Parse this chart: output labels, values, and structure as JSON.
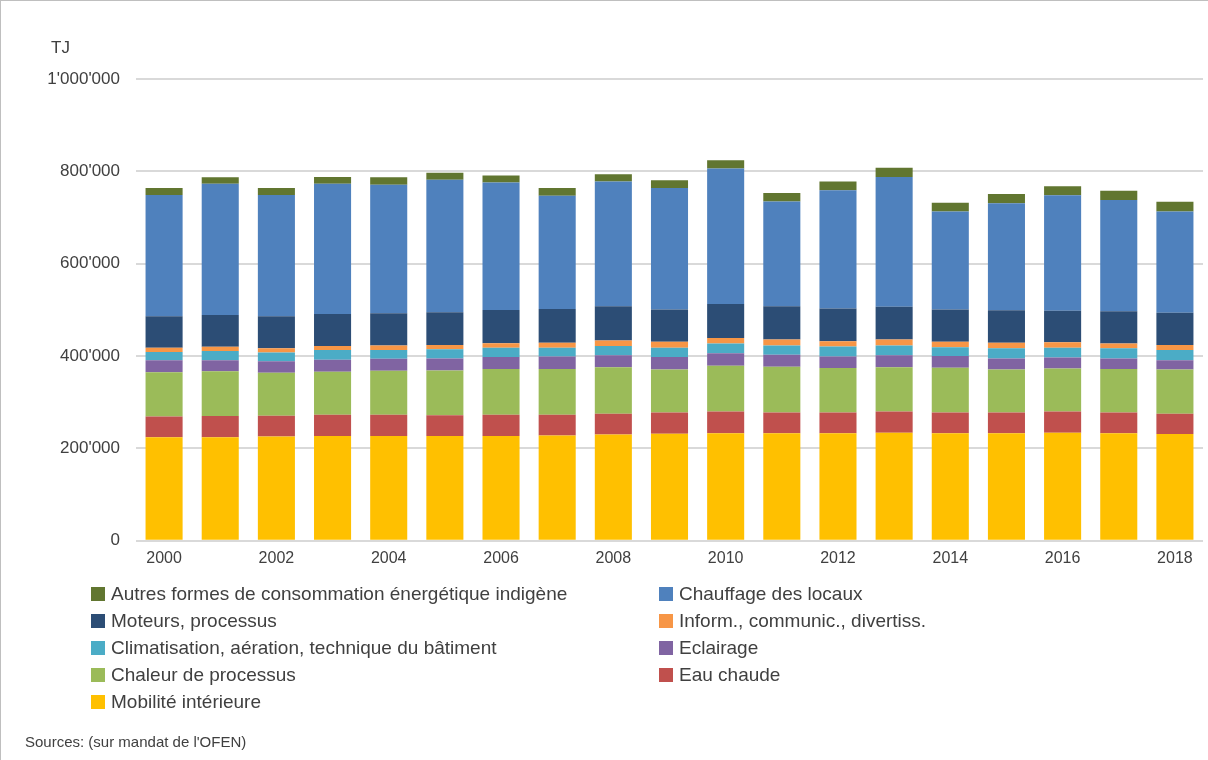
{
  "chart_data": {
    "type": "bar",
    "stacked": true,
    "ylabel": "TJ",
    "categories": [
      "2000",
      null,
      "2002",
      null,
      "2004",
      null,
      "2006",
      null,
      "2008",
      null,
      "2010",
      null,
      "2012",
      null,
      "2014",
      null,
      "2016",
      null,
      "2018"
    ],
    "series": [
      {
        "name": "Mobilité intérieure",
        "color": "#ffc000",
        "values": [
          224000,
          224000,
          226000,
          227000,
          227000,
          227000,
          227000,
          228000,
          230000,
          232000,
          233000,
          233000,
          233000,
          234000,
          233000,
          233000,
          234000,
          233000,
          231000
        ]
      },
      {
        "name": "Eau chaude",
        "color": "#c0504d",
        "values": [
          45000,
          46000,
          45000,
          46000,
          46000,
          45000,
          46000,
          45000,
          45000,
          46000,
          47000,
          45000,
          45000,
          46000,
          45000,
          45000,
          46000,
          45000,
          44000
        ]
      },
      {
        "name": "Chaleur de processus",
        "color": "#9bbb59",
        "values": [
          96000,
          97000,
          93000,
          93000,
          95000,
          97000,
          99000,
          99000,
          101000,
          93000,
          99000,
          99000,
          96000,
          96000,
          97000,
          93000,
          93000,
          94000,
          96000
        ]
      },
      {
        "name": "Eclairage",
        "color": "#8064a2",
        "values": [
          26000,
          24000,
          25000,
          26000,
          26000,
          26000,
          26000,
          27000,
          26000,
          27000,
          27000,
          26000,
          25000,
          26000,
          25000,
          24000,
          24000,
          23000,
          20000
        ]
      },
      {
        "name": "Climatisation, aération, technique du bâtiment",
        "color": "#4bacc6",
        "values": [
          18000,
          20000,
          19000,
          21000,
          19000,
          20000,
          20000,
          19000,
          20000,
          20000,
          21000,
          20000,
          22000,
          21000,
          19000,
          22000,
          21000,
          22000,
          22000
        ]
      },
      {
        "name": "Inform., communic., divertiss.",
        "color": "#f79646",
        "values": [
          9000,
          9000,
          9000,
          9000,
          10000,
          9000,
          10000,
          11000,
          12000,
          13000,
          12000,
          13000,
          11000,
          13000,
          12000,
          12000,
          12000,
          10000,
          11000
        ]
      },
      {
        "name": "Moteurs, processus",
        "color": "#2c4d75",
        "values": [
          68000,
          69000,
          69000,
          69000,
          70000,
          71000,
          72000,
          73000,
          74000,
          70000,
          74000,
          72000,
          71000,
          71000,
          70000,
          70000,
          68000,
          70000,
          70000
        ]
      },
      {
        "name": "Chauffage des locaux",
        "color": "#4f81bd",
        "values": [
          263000,
          284000,
          263000,
          282000,
          278000,
          287000,
          276000,
          245000,
          270000,
          263000,
          293000,
          227000,
          256000,
          281000,
          212000,
          232000,
          250000,
          241000,
          219000
        ]
      },
      {
        "name": "Autres formes de consommation énergétique indigène",
        "color": "#617630",
        "values": [
          15000,
          14000,
          15000,
          15000,
          16000,
          15000,
          15000,
          17000,
          16000,
          17000,
          18000,
          18000,
          19000,
          20000,
          19000,
          20000,
          20000,
          20000,
          21000
        ]
      }
    ],
    "ylim": [
      0,
      1000000
    ],
    "yticks": [
      {
        "value": 0,
        "label": "0"
      },
      {
        "value": 200000,
        "label": "200'000"
      },
      {
        "value": 400000,
        "label": "400'000"
      },
      {
        "value": 600000,
        "label": "600'000"
      },
      {
        "value": 800000,
        "label": "800'000"
      },
      {
        "value": 1000000,
        "label": "1'000'000"
      }
    ],
    "grid": "y",
    "legend": "bottom",
    "annotations": [
      "Sources: (sur mandat de l'OFEN)"
    ]
  }
}
